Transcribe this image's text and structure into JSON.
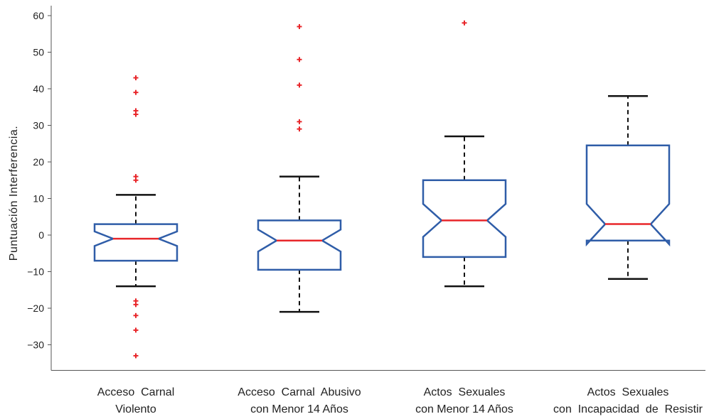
{
  "chart_data": {
    "type": "box",
    "ylabel": "Puntuación   Interferencia.",
    "xlabel": "",
    "title": "",
    "ylim": [
      -37,
      62
    ],
    "yticks": [
      60,
      50,
      40,
      30,
      20,
      10,
      0,
      -10,
      -20,
      -30
    ],
    "ytick_labels": [
      "60",
      "50",
      "40",
      "30",
      "20",
      "10",
      "0",
      "−10",
      "−20",
      "−30"
    ],
    "notched": true,
    "categories": [
      "Acceso Carnal Violento",
      "Acceso Carnal Abusivo con Menor 14 Años",
      "Actos Sexuales con Menor 14 Años",
      "Actos Sexuales con Incapacidad de Resistir"
    ],
    "category_lines": [
      [
        "Acceso  Carnal",
        "Violento"
      ],
      [
        "Acceso  Carnal  Abusivo",
        "con Menor 14 Años"
      ],
      [
        "Actos  Sexuales",
        "con Menor 14 Años"
      ],
      [
        "Actos  Sexuales",
        "con  Incapacidad  de  Resistir"
      ]
    ],
    "boxes": [
      {
        "whisker_low": -14,
        "q1": -7,
        "notch_low": -3,
        "median": -1,
        "notch_high": 1,
        "q3": 3,
        "whisker_high": 11,
        "outliers": [
          43,
          39,
          34,
          33,
          16,
          15,
          -18,
          -19,
          -22,
          -26,
          -33
        ]
      },
      {
        "whisker_low": -21,
        "q1": -9.5,
        "notch_low": -4.5,
        "median": -1.5,
        "notch_high": 1.5,
        "q3": 4,
        "whisker_high": 16,
        "outliers": [
          57,
          48,
          41,
          31,
          29
        ]
      },
      {
        "whisker_low": -14,
        "q1": -6,
        "notch_low": -0.5,
        "median": 4,
        "notch_high": 8.5,
        "q3": 15,
        "whisker_high": 27,
        "outliers": [
          58
        ]
      },
      {
        "whisker_low": -12,
        "q1": -1.5,
        "notch_low": -2.5,
        "median": 3,
        "notch_high": 8.5,
        "q3": 24.5,
        "whisker_high": 38,
        "outliers": []
      }
    ],
    "colors": {
      "box": "#2f5da8",
      "median": "#e8262a",
      "whisker": "#111111",
      "outlier": "#e8262a",
      "axis": "#555555"
    },
    "grid": false
  }
}
